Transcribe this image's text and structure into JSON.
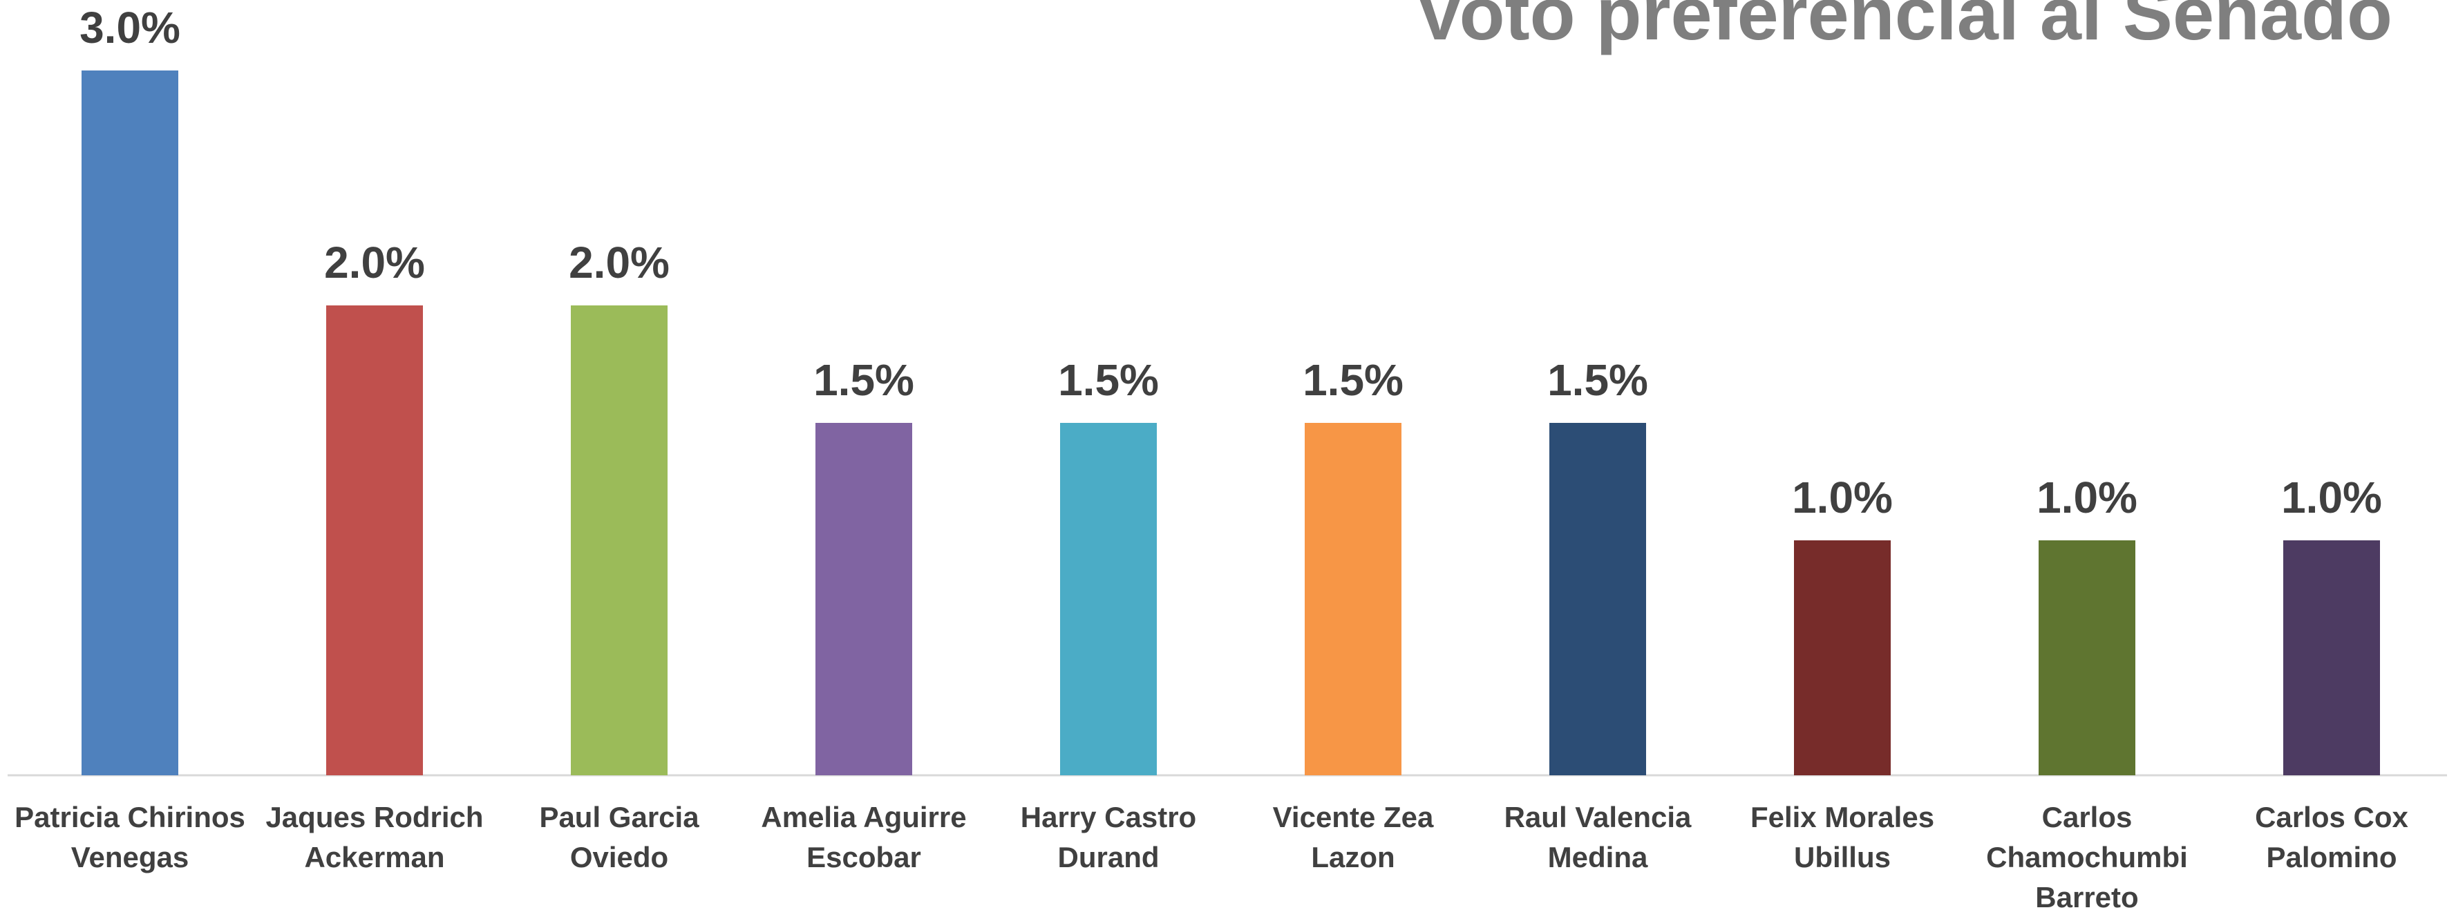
{
  "chart_data": {
    "type": "bar",
    "title": "Voto preferencial al Senado",
    "categories": [
      "Patricia Chirinos Venegas",
      "Jaques Rodrich Ackerman",
      "Paul Garcia Oviedo",
      "Amelia Aguirre Escobar",
      "Harry Castro Durand",
      "Vicente Zea Lazon",
      "Raul Valencia Medina",
      "Felix Morales Ubillus",
      "Carlos Chamochumbi Barreto",
      "Carlos Cox Palomino"
    ],
    "values": [
      3.0,
      2.0,
      2.0,
      1.5,
      1.5,
      1.5,
      1.5,
      1.0,
      1.0,
      1.0
    ],
    "value_labels": [
      "3.0%",
      "2.0%",
      "2.0%",
      "1.5%",
      "1.5%",
      "1.5%",
      "1.5%",
      "1.0%",
      "1.0%",
      "1.0%"
    ],
    "colors": [
      "#4f81bd",
      "#c0504d",
      "#9bbb59",
      "#8064a2",
      "#4bacc6",
      "#f79646",
      "#2c4d75",
      "#772c2a",
      "#5f7530",
      "#4d3b62"
    ],
    "ylim": [
      0,
      3.0
    ]
  }
}
